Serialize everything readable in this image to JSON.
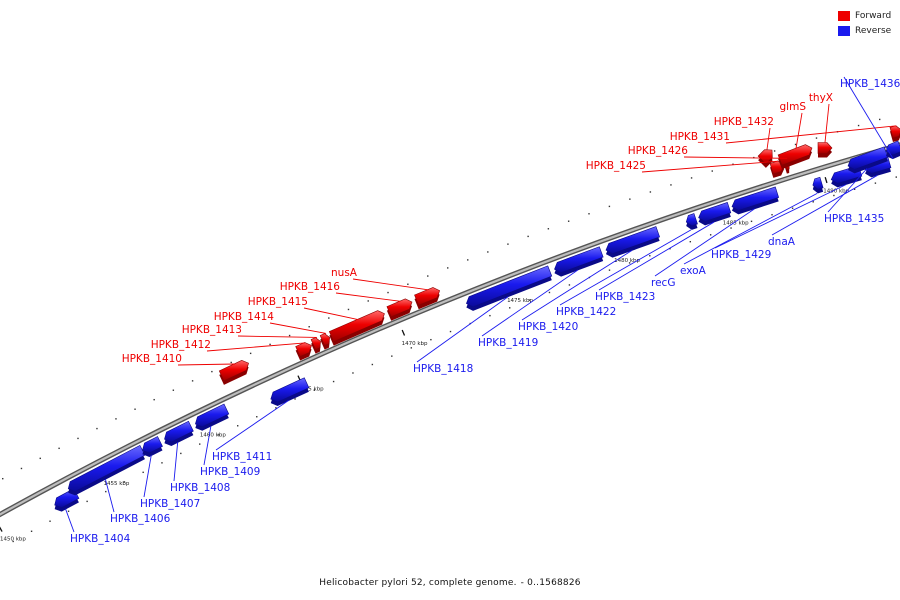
{
  "legend": {
    "forward_label": "Forward",
    "reverse_label": "Reverse",
    "forward_color": "#ee0000",
    "reverse_color": "#1a1aee"
  },
  "caption": {
    "title": "Helicobacter pylori 52, complete genome.",
    "range": "- 0..1568826"
  },
  "ticks": [
    "1450 kbp",
    "1455 kbp",
    "1460 kbp",
    "1465 kbp",
    "1470 kbp",
    "1475 kbp",
    "1480 kbp",
    "1485 kbp",
    "1490 kbp"
  ],
  "genes": [
    {
      "label": "HPKB_1404",
      "strand": "reverse"
    },
    {
      "label": "HPKB_1406",
      "strand": "reverse"
    },
    {
      "label": "HPKB_1407",
      "strand": "reverse"
    },
    {
      "label": "HPKB_1408",
      "strand": "reverse"
    },
    {
      "label": "HPKB_1409",
      "strand": "reverse"
    },
    {
      "label": "HPKB_1410",
      "strand": "forward"
    },
    {
      "label": "HPKB_1411",
      "strand": "reverse"
    },
    {
      "label": "HPKB_1412",
      "strand": "forward"
    },
    {
      "label": "HPKB_1413",
      "strand": "forward"
    },
    {
      "label": "HPKB_1414",
      "strand": "forward"
    },
    {
      "label": "HPKB_1415",
      "strand": "forward"
    },
    {
      "label": "HPKB_1416",
      "strand": "forward"
    },
    {
      "label": "nusA",
      "strand": "forward"
    },
    {
      "label": "HPKB_1418",
      "strand": "reverse"
    },
    {
      "label": "HPKB_1419",
      "strand": "reverse"
    },
    {
      "label": "HPKB_1420",
      "strand": "reverse"
    },
    {
      "label": "HPKB_1422",
      "strand": "reverse"
    },
    {
      "label": "HPKB_1423",
      "strand": "reverse"
    },
    {
      "label": "recG",
      "strand": "reverse"
    },
    {
      "label": "HPKB_1425",
      "strand": "forward"
    },
    {
      "label": "HPKB_1426",
      "strand": "forward"
    },
    {
      "label": "exoA",
      "strand": "reverse"
    },
    {
      "label": "HPKB_1429",
      "strand": "reverse"
    },
    {
      "label": "dnaA",
      "strand": "reverse"
    },
    {
      "label": "HPKB_1431",
      "strand": "forward"
    },
    {
      "label": "HPKB_1432",
      "strand": "forward"
    },
    {
      "label": "glmS",
      "strand": "forward"
    },
    {
      "label": "thyX",
      "strand": "forward"
    },
    {
      "label": "HPKB_1435",
      "strand": "reverse"
    },
    {
      "label": "HPKB_1436",
      "strand": "reverse"
    }
  ]
}
